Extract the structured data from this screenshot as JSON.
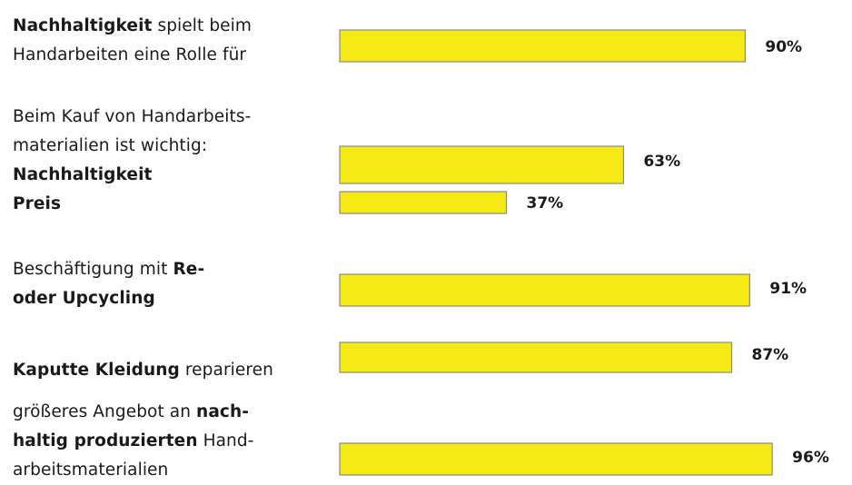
{
  "chart_data": {
    "type": "bar",
    "orientation": "horizontal",
    "xlim": [
      0,
      100
    ],
    "unit": "%",
    "bar_color": "#f5ea14",
    "bar_stroke": "#8a8a8a",
    "groups": [
      {
        "label_lines": [
          [
            {
              "text": "Nachhaltigkeit",
              "bold": true
            },
            {
              "text": " spielt beim",
              "bold": false
            }
          ],
          [
            {
              "text": "Handarbeiten eine Rolle für",
              "bold": false
            }
          ]
        ],
        "bars": [
          {
            "value": 90,
            "label": "90%"
          }
        ]
      },
      {
        "label_lines": [
          [
            {
              "text": "Beim Kauf von Handarbeits-",
              "bold": false
            }
          ],
          [
            {
              "text": "materialien ist wichtig:",
              "bold": false
            }
          ],
          [
            {
              "text": "Nachhaltigkeit",
              "bold": true
            }
          ],
          [
            {
              "text": "Preis",
              "bold": true
            }
          ]
        ],
        "bars": [
          {
            "value": 63,
            "label": "63%"
          },
          {
            "value": 37,
            "label": "37%"
          }
        ]
      },
      {
        "label_lines": [
          [
            {
              "text": "Beschäftigung mit ",
              "bold": false
            },
            {
              "text": "Re-",
              "bold": true
            }
          ],
          [
            {
              "text": "oder Upcycling",
              "bold": true
            }
          ]
        ],
        "bars": [
          {
            "value": 91,
            "label": "91%"
          }
        ]
      },
      {
        "label_lines": [
          [
            {
              "text": "Kaputte Kleidung",
              "bold": true
            },
            {
              "text": " reparieren",
              "bold": false
            }
          ]
        ],
        "bars": [
          {
            "value": 87,
            "label": "87%"
          }
        ]
      },
      {
        "label_lines": [
          [
            {
              "text": "größeres Angebot an ",
              "bold": false
            },
            {
              "text": "nach-",
              "bold": true
            }
          ],
          [
            {
              "text": "haltig produzierten",
              "bold": true
            },
            {
              "text": " Hand-",
              "bold": false
            }
          ],
          [
            {
              "text": "arbeitsmaterialien",
              "bold": false
            }
          ]
        ],
        "bars": [
          {
            "value": 96,
            "label": "96%"
          }
        ]
      }
    ]
  }
}
